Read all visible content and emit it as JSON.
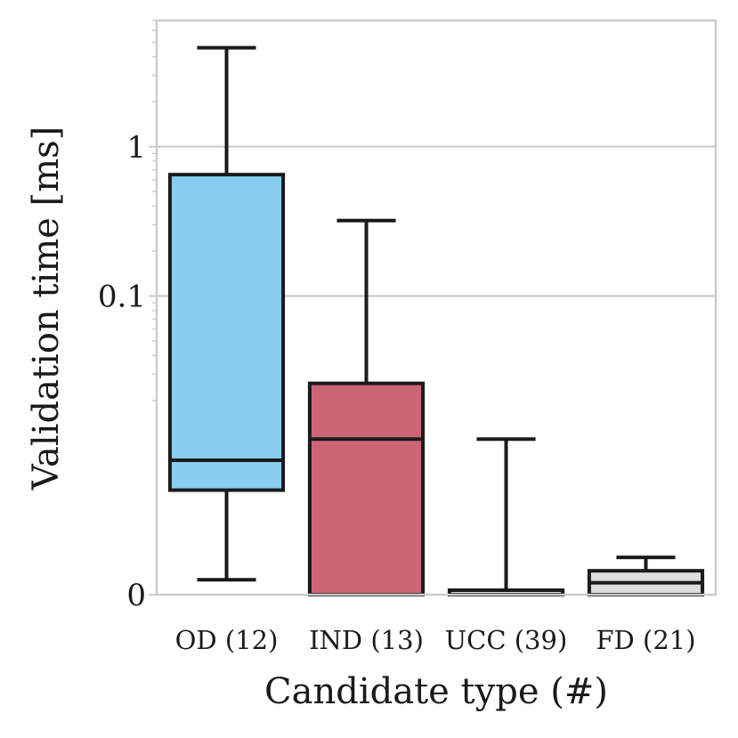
{
  "chart_data": {
    "type": "box",
    "title": "",
    "xlabel": "Candidate type (#)",
    "ylabel": "Validation time [ms]",
    "y_scale": "symlog",
    "ylim": [
      0,
      7
    ],
    "yticks": [
      {
        "value": 0,
        "label": "0"
      },
      {
        "value": 0.1,
        "label": "0.1"
      },
      {
        "value": 1,
        "label": "1"
      }
    ],
    "grid": "horizontal",
    "categories": [
      "OD (12)",
      "IND (13)",
      "UCC (39)",
      "FD (21)"
    ],
    "boxes": [
      {
        "category": "OD (12)",
        "whislo": 0.001,
        "q1": 0.007,
        "median": 0.009,
        "q3": 0.65,
        "whishi": 4.6,
        "color": "#89CDEE"
      },
      {
        "category": "IND (13)",
        "whislo": 0.0,
        "q1": 0.0,
        "median": 0.011,
        "q3": 0.026,
        "whishi": 0.32,
        "color": "#CC6677"
      },
      {
        "category": "UCC (39)",
        "whislo": 0.0,
        "q1": 0.0,
        "median": 0.0,
        "q3": 0.0003,
        "whishi": 0.011,
        "color": "#dddddd"
      },
      {
        "category": "FD (21)",
        "whislo": 0.0,
        "q1": 0.0,
        "median": 0.0008,
        "q3": 0.0016,
        "whishi": 0.0025,
        "color": "#dddddd"
      }
    ]
  },
  "colors": {
    "od": "#89CDEE",
    "ind": "#CC6677",
    "grid": "#cccccc",
    "edge": "#1a1a1a"
  }
}
